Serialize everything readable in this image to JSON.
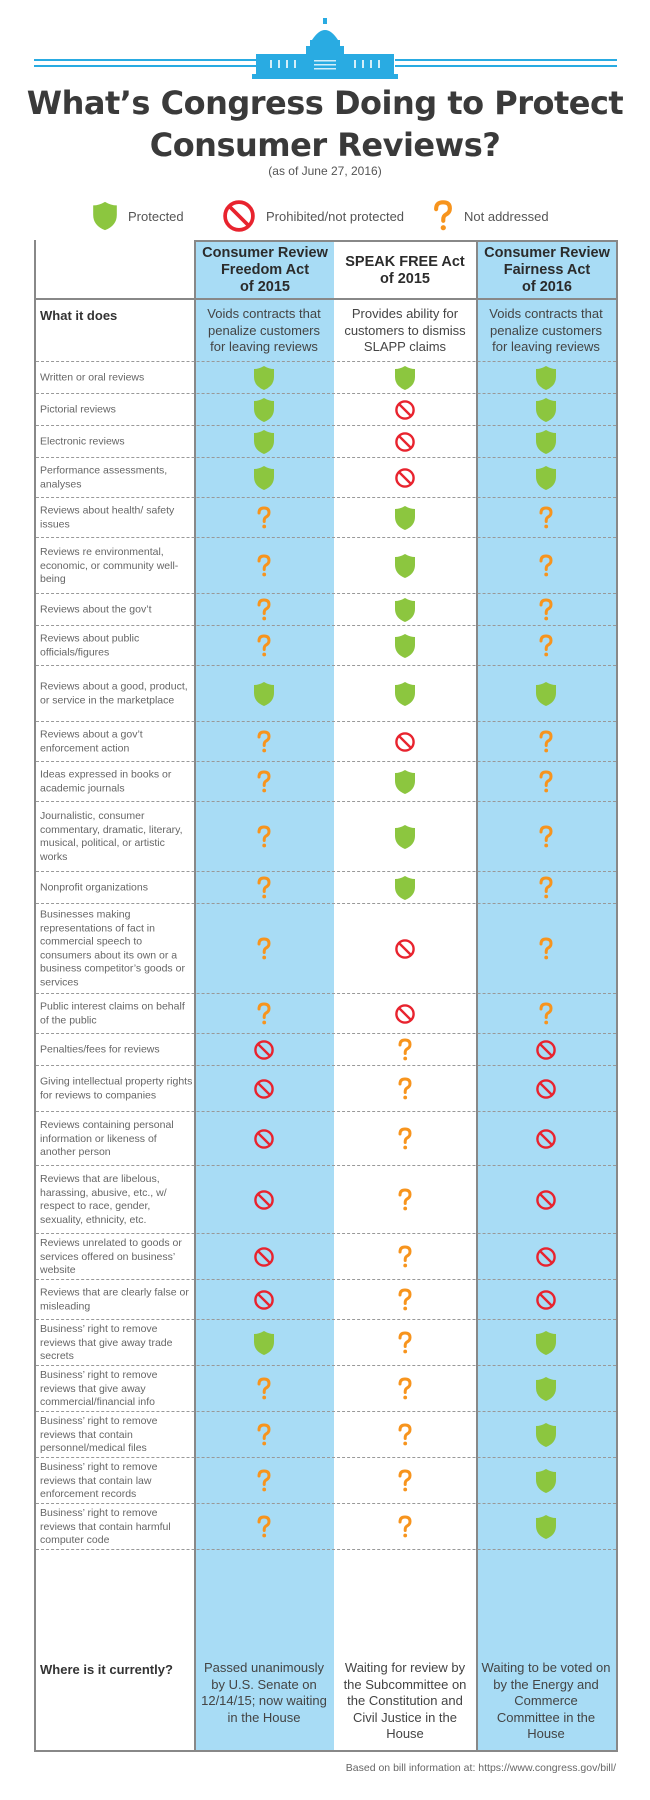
{
  "title_line1": "What’s Congress Doing to Protect",
  "title_line2": "Consumer Reviews?",
  "subtitle": "(as of June 27, 2016)",
  "legend": [
    {
      "icon": "shield-icon",
      "label": "Protected"
    },
    {
      "icon": "prohibited-icon",
      "label": "Prohibited/not protected"
    },
    {
      "icon": "question-icon",
      "label": "Not addressed"
    }
  ],
  "colors": {
    "protected": "#8cc63f",
    "prohibited": "#e8232e",
    "not_addressed": "#f7941d",
    "column_blue": "#a8dcf5",
    "capitol_blue": "#29abe2",
    "title": "#3a3a3a"
  },
  "columns": [
    {
      "title": "Consumer Review\nFreedom Act\nof 2015",
      "what_it_does": "Voids contracts that penalize customers for leaving reviews",
      "where": "Passed unanimously by U.S. Senate on 12/14/15; now waiting in the House"
    },
    {
      "title": "SPEAK FREE Act\nof 2015",
      "what_it_does": "Provides ability for customers to dismiss SLAPP claims",
      "where": "Waiting for review by the Subcommittee on the Constitution and Civil Justice in the House"
    },
    {
      "title": "Consumer Review\nFairness Act\nof 2016",
      "what_it_does": "Voids contracts that penalize customers for leaving reviews",
      "where": "Waiting to be voted on by the Energy and Commerce Committee in the House"
    }
  ],
  "what_it_does_label": "What it does",
  "where_label": "Where is it currently?",
  "rows": [
    {
      "label": "Written or oral reviews",
      "status": [
        "protected",
        "protected",
        "protected"
      ]
    },
    {
      "label": "Pictorial reviews",
      "status": [
        "protected",
        "prohibited",
        "protected"
      ]
    },
    {
      "label": "Electronic reviews",
      "status": [
        "protected",
        "prohibited",
        "protected"
      ]
    },
    {
      "label": "Performance assessments, analyses",
      "status": [
        "protected",
        "prohibited",
        "protected"
      ]
    },
    {
      "label": "Reviews about health/ safety issues",
      "status": [
        "not_addressed",
        "protected",
        "not_addressed"
      ]
    },
    {
      "label": "Reviews re environmental, economic, or community well-being",
      "status": [
        "not_addressed",
        "protected",
        "not_addressed"
      ]
    },
    {
      "label": "Reviews about the gov’t",
      "status": [
        "not_addressed",
        "protected",
        "not_addressed"
      ]
    },
    {
      "label": "Reviews about public officials/figures",
      "status": [
        "not_addressed",
        "protected",
        "not_addressed"
      ]
    },
    {
      "label": "Reviews about a good, product, or service in the marketplace",
      "status": [
        "protected",
        "protected",
        "protected"
      ]
    },
    {
      "label": "Reviews about a gov’t enforcement action",
      "status": [
        "not_addressed",
        "prohibited",
        "not_addressed"
      ]
    },
    {
      "label": "Ideas expressed in books or academic journals",
      "status": [
        "not_addressed",
        "protected",
        "not_addressed"
      ]
    },
    {
      "label": "Journalistic, consumer commentary, dramatic, literary, musical, political, or artistic works",
      "status": [
        "not_addressed",
        "protected",
        "not_addressed"
      ]
    },
    {
      "label": "Nonprofit organizations",
      "status": [
        "not_addressed",
        "protected",
        "not_addressed"
      ]
    },
    {
      "label": "Businesses making representations of fact in commercial speech to consumers about its own or a business competitor’s goods or services",
      "status": [
        "not_addressed",
        "prohibited",
        "not_addressed"
      ]
    },
    {
      "label": "Public interest claims on behalf of the public",
      "status": [
        "not_addressed",
        "prohibited",
        "not_addressed"
      ]
    },
    {
      "label": "Penalties/fees for reviews",
      "status": [
        "prohibited",
        "not_addressed",
        "prohibited"
      ]
    },
    {
      "label": "Giving intellectual property rights for reviews to companies",
      "status": [
        "prohibited",
        "not_addressed",
        "prohibited"
      ]
    },
    {
      "label": "Reviews containing personal information or likeness of another person",
      "status": [
        "prohibited",
        "not_addressed",
        "prohibited"
      ]
    },
    {
      "label": "Reviews that are libelous, harassing, abusive, etc., w/ respect to race, gender, sexuality, ethnicity, etc.",
      "status": [
        "prohibited",
        "not_addressed",
        "prohibited"
      ]
    },
    {
      "label": "Reviews unrelated to goods or services offered on business’ website",
      "status": [
        "prohibited",
        "not_addressed",
        "prohibited"
      ]
    },
    {
      "label": "Reviews that are clearly false or misleading",
      "status": [
        "prohibited",
        "not_addressed",
        "prohibited"
      ]
    },
    {
      "label": "Business’ right to remove reviews that give away trade secrets",
      "status": [
        "protected",
        "not_addressed",
        "protected"
      ]
    },
    {
      "label": "Business’ right to remove reviews that give away commercial/financial info",
      "status": [
        "not_addressed",
        "not_addressed",
        "protected"
      ]
    },
    {
      "label": "Business’ right to remove reviews that contain personnel/medical files",
      "status": [
        "not_addressed",
        "not_addressed",
        "protected"
      ]
    },
    {
      "label": "Business’ right to remove reviews that contain law enforcement records",
      "status": [
        "not_addressed",
        "not_addressed",
        "protected"
      ]
    },
    {
      "label": "Business’ right to remove reviews that contain harmful computer code",
      "status": [
        "not_addressed",
        "not_addressed",
        "protected"
      ]
    }
  ],
  "footer": "Based on bill information at: https://www.congress.gov/bill/"
}
